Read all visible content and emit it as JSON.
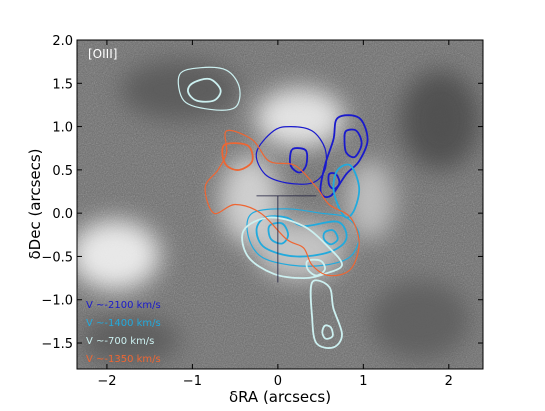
{
  "chart_data": {
    "type": "contour",
    "panel_label": "[OIII]",
    "xlabel": "δRA (arcsecs)",
    "ylabel": "δDec (arcsecs)",
    "xlim": [
      -2.35,
      2.4
    ],
    "ylim": [
      -1.8,
      2.0
    ],
    "x_ticks": [
      -2,
      -1,
      0,
      1,
      2
    ],
    "x_tick_labels": [
      "−2",
      "−1",
      "0",
      "1",
      "2"
    ],
    "y_ticks": [
      -1.5,
      -1.0,
      -0.5,
      0.0,
      0.5,
      1.0,
      1.5,
      2.0
    ],
    "y_tick_labels": [
      "−1.5",
      "−1.0",
      "−0.5",
      "0.0",
      "0.5",
      "1.0",
      "1.5",
      "2.0"
    ],
    "background": "greyscale image",
    "legend_position": "lower-left",
    "series": [
      {
        "name": "V ~-2100 km/s",
        "color": "#1a1acc",
        "contours": [
          [
            [
              -0.05,
              0.95
            ],
            [
              0.15,
              1.0
            ],
            [
              0.4,
              0.95
            ],
            [
              0.55,
              0.75
            ],
            [
              0.55,
              0.5
            ],
            [
              0.4,
              0.35
            ],
            [
              0.1,
              0.35
            ],
            [
              -0.15,
              0.45
            ],
            [
              -0.25,
              0.7
            ]
          ],
          [
            [
              0.2,
              0.75
            ],
            [
              0.33,
              0.72
            ],
            [
              0.33,
              0.55
            ],
            [
              0.25,
              0.47
            ],
            [
              0.15,
              0.55
            ],
            [
              0.15,
              0.7
            ]
          ],
          [
            [
              0.7,
              1.1
            ],
            [
              0.95,
              1.1
            ],
            [
              1.05,
              0.85
            ],
            [
              0.95,
              0.6
            ],
            [
              0.8,
              0.45
            ],
            [
              0.62,
              0.2
            ],
            [
              0.5,
              0.25
            ],
            [
              0.55,
              0.55
            ],
            [
              0.65,
              0.85
            ]
          ],
          [
            [
              0.8,
              0.95
            ],
            [
              0.92,
              0.95
            ],
            [
              0.98,
              0.8
            ],
            [
              0.9,
              0.65
            ],
            [
              0.8,
              0.7
            ],
            [
              0.78,
              0.85
            ]
          ],
          [
            [
              0.6,
              0.45
            ],
            [
              0.68,
              0.45
            ],
            [
              0.72,
              0.35
            ],
            [
              0.66,
              0.28
            ],
            [
              0.6,
              0.33
            ]
          ]
        ]
      },
      {
        "name": "V ~-1400 km/s",
        "color": "#22aadd",
        "contours": [
          [
            [
              -0.3,
              0.0
            ],
            [
              0.1,
              0.05
            ],
            [
              0.5,
              0.0
            ],
            [
              0.8,
              -0.05
            ],
            [
              0.95,
              -0.25
            ],
            [
              0.85,
              -0.5
            ],
            [
              0.55,
              -0.6
            ],
            [
              0.15,
              -0.6
            ],
            [
              -0.2,
              -0.5
            ],
            [
              -0.35,
              -0.25
            ]
          ],
          [
            [
              -0.15,
              -0.05
            ],
            [
              0.1,
              -0.05
            ],
            [
              0.3,
              -0.15
            ],
            [
              0.7,
              -0.1
            ],
            [
              0.8,
              -0.3
            ],
            [
              0.6,
              -0.45
            ],
            [
              0.2,
              -0.5
            ],
            [
              -0.15,
              -0.4
            ],
            [
              -0.25,
              -0.2
            ]
          ],
          [
            [
              -0.1,
              -0.15
            ],
            [
              0.05,
              -0.12
            ],
            [
              0.12,
              -0.25
            ],
            [
              0.05,
              -0.35
            ],
            [
              -0.08,
              -0.3
            ]
          ],
          [
            [
              0.55,
              -0.22
            ],
            [
              0.65,
              -0.2
            ],
            [
              0.7,
              -0.3
            ],
            [
              0.62,
              -0.36
            ],
            [
              0.54,
              -0.3
            ]
          ],
          [
            [
              0.7,
              0.5
            ],
            [
              0.85,
              0.55
            ],
            [
              0.95,
              0.3
            ],
            [
              0.9,
              0.05
            ],
            [
              0.8,
              -0.05
            ],
            [
              0.7,
              0.1
            ],
            [
              0.65,
              0.3
            ]
          ]
        ]
      },
      {
        "name": "V ~-700 km/s",
        "color": "#ccf0f0",
        "contours": [
          [
            [
              -1.15,
              1.6
            ],
            [
              -0.9,
              1.68
            ],
            [
              -0.6,
              1.65
            ],
            [
              -0.45,
              1.45
            ],
            [
              -0.5,
              1.22
            ],
            [
              -0.8,
              1.2
            ],
            [
              -1.1,
              1.3
            ]
          ],
          [
            [
              -1.0,
              1.5
            ],
            [
              -0.8,
              1.55
            ],
            [
              -0.67,
              1.42
            ],
            [
              -0.75,
              1.3
            ],
            [
              -0.95,
              1.3
            ],
            [
              -1.05,
              1.4
            ]
          ],
          [
            [
              -0.4,
              -0.2
            ],
            [
              -0.1,
              -0.05
            ],
            [
              0.3,
              -0.15
            ],
            [
              0.6,
              -0.4
            ],
            [
              0.75,
              -0.6
            ],
            [
              0.55,
              -0.7
            ],
            [
              0.3,
              -0.75
            ],
            [
              -0.05,
              -0.7
            ],
            [
              -0.35,
              -0.5
            ]
          ],
          [
            [
              0.35,
              -0.55
            ],
            [
              0.5,
              -0.55
            ],
            [
              0.55,
              -0.65
            ],
            [
              0.45,
              -0.72
            ],
            [
              0.35,
              -0.65
            ]
          ],
          [
            [
              0.4,
              -0.8
            ],
            [
              0.6,
              -0.85
            ],
            [
              0.65,
              -1.1
            ],
            [
              0.75,
              -1.4
            ],
            [
              0.65,
              -1.55
            ],
            [
              0.45,
              -1.5
            ],
            [
              0.4,
              -1.2
            ]
          ],
          [
            [
              0.55,
              -1.3
            ],
            [
              0.62,
              -1.32
            ],
            [
              0.64,
              -1.42
            ],
            [
              0.56,
              -1.45
            ],
            [
              0.52,
              -1.38
            ]
          ]
        ]
      },
      {
        "name": "V ~-1350 km/s",
        "color": "#ee6633",
        "contours": [
          [
            [
              -0.6,
              0.95
            ],
            [
              -0.3,
              0.85
            ],
            [
              -0.1,
              0.6
            ],
            [
              0.2,
              0.55
            ],
            [
              0.45,
              0.3
            ],
            [
              0.6,
              0.1
            ],
            [
              0.85,
              -0.05
            ],
            [
              0.95,
              -0.35
            ],
            [
              0.85,
              -0.65
            ],
            [
              0.6,
              -0.72
            ],
            [
              0.4,
              -0.6
            ],
            [
              0.3,
              -0.4
            ],
            [
              0.1,
              -0.3
            ],
            [
              -0.2,
              0.0
            ],
            [
              -0.5,
              0.1
            ],
            [
              -0.75,
              0.0
            ],
            [
              -0.85,
              0.3
            ],
            [
              -0.7,
              0.5
            ],
            [
              -0.6,
              0.7
            ]
          ],
          [
            [
              -0.6,
              0.8
            ],
            [
              -0.35,
              0.78
            ],
            [
              -0.3,
              0.6
            ],
            [
              -0.45,
              0.5
            ],
            [
              -0.6,
              0.55
            ],
            [
              -0.65,
              0.7
            ]
          ]
        ]
      }
    ]
  }
}
